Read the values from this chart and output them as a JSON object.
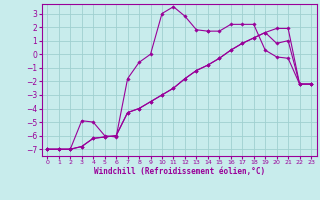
{
  "xlabel": "Windchill (Refroidissement éolien,°C)",
  "xlim": [
    -0.5,
    23.5
  ],
  "ylim": [
    -7.5,
    3.7
  ],
  "yticks": [
    3,
    2,
    1,
    0,
    -1,
    -2,
    -3,
    -4,
    -5,
    -6,
    -7
  ],
  "xticks": [
    0,
    1,
    2,
    3,
    4,
    5,
    6,
    7,
    8,
    9,
    10,
    11,
    12,
    13,
    14,
    15,
    16,
    17,
    18,
    19,
    20,
    21,
    22,
    23
  ],
  "background_color": "#c8ecec",
  "grid_color": "#a0d0d0",
  "line_color": "#990099",
  "lines": [
    {
      "x": [
        0,
        1,
        2,
        3,
        4,
        5,
        6,
        7,
        8,
        9,
        10,
        11,
        12,
        13,
        14,
        15,
        16,
        17,
        18,
        19,
        20,
        21,
        22,
        23
      ],
      "y": [
        -7,
        -7,
        -7,
        -6.8,
        -6.2,
        -6.1,
        -6.0,
        -4.3,
        -4.0,
        -3.5,
        -3.0,
        -2.5,
        -1.8,
        -1.2,
        -0.8,
        -0.3,
        0.3,
        0.8,
        1.2,
        1.6,
        1.9,
        1.9,
        -2.2,
        -2.2
      ]
    },
    {
      "x": [
        0,
        1,
        2,
        3,
        4,
        5,
        6,
        7,
        8,
        9,
        10,
        11,
        12,
        13,
        14,
        15,
        16,
        17,
        18,
        19,
        20,
        21,
        22,
        23
      ],
      "y": [
        -7,
        -7,
        -7,
        -6.8,
        -6.2,
        -6.1,
        -6.0,
        -4.3,
        -4.0,
        -3.5,
        -3.0,
        -2.5,
        -1.8,
        -1.2,
        -0.8,
        -0.3,
        0.3,
        0.8,
        1.2,
        1.6,
        0.8,
        1.0,
        -2.2,
        -2.2
      ]
    },
    {
      "x": [
        0,
        1,
        2,
        3,
        4,
        5,
        6,
        7,
        8,
        9,
        10,
        11,
        12,
        13,
        14
      ],
      "y": [
        -7,
        -7,
        -7,
        -4.9,
        -5.0,
        -6.0,
        -6.1,
        -1.8,
        -0.6,
        0.0,
        3.0,
        3.5,
        2.8,
        1.8,
        1.7
      ]
    },
    {
      "x": [
        14,
        15,
        16,
        17,
        18,
        19,
        20,
        21,
        22,
        23
      ],
      "y": [
        1.7,
        1.7,
        2.2,
        2.2,
        2.2,
        0.3,
        -0.2,
        -0.3,
        -2.2,
        -2.2
      ]
    }
  ]
}
